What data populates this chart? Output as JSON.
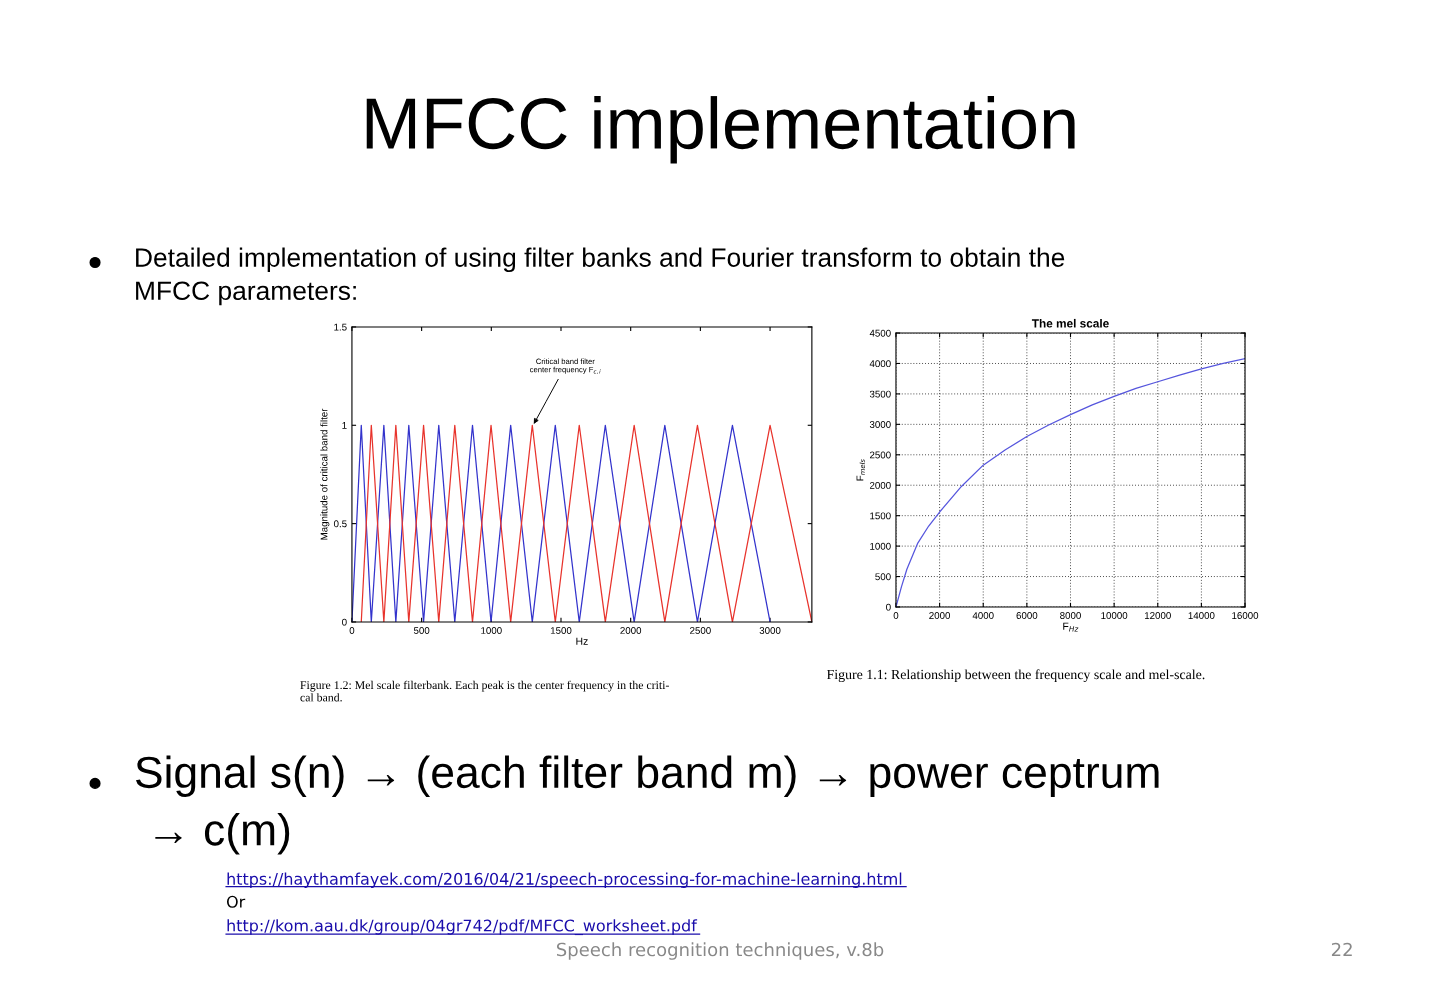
{
  "chart_data": [
    {
      "type": "line",
      "xlabel": "Hz",
      "ylabel": "Magnitude of critical band filter",
      "series": [
        {
          "color": "#3333cc",
          "x": [
            0,
            67,
            139,
            229,
            315,
            408,
            514,
            623,
            738,
            865,
            998,
            1139,
            1294,
            1459,
            1631,
            1818,
            2025,
            2245,
            2479,
            2730,
            3000
          ],
          "values": [
            0,
            1,
            0,
            1,
            0,
            1,
            0,
            1,
            0,
            1,
            0,
            1,
            0,
            1,
            0,
            1,
            0,
            1,
            0,
            1,
            0
          ]
        },
        {
          "color": "#e8332c",
          "x": [
            67,
            139,
            229,
            315,
            408,
            514,
            623,
            738,
            865,
            998,
            1139,
            1294,
            1459,
            1631,
            1818,
            2025,
            2245,
            2479,
            2730,
            3000,
            3300
          ],
          "values": [
            0,
            1,
            0,
            1,
            0,
            1,
            0,
            1,
            0,
            1,
            0,
            1,
            0,
            1,
            0,
            1,
            0,
            1,
            0,
            1,
            0
          ]
        }
      ],
      "xlim": [
        0,
        3300
      ],
      "xticks": [
        0,
        500,
        1000,
        1500,
        2000,
        2500,
        3000
      ],
      "ylim": [
        0,
        1.5
      ],
      "yticks": [
        0,
        0.5,
        1,
        1.5
      ],
      "grid": false,
      "marker": "none",
      "line_style": "solid",
      "annotations": [
        {
          "text": "Critical band filter\ncenter frequency F$_{c,i}$",
          "x": 1300,
          "y": 1
        },
        "Figure 1.2: Mel scale filterbank. Each peak is the center frequency in the criti-\ncal band.",
        "MFCC implementation",
        "Detailed implementation of using filter banks and Fourier transform to obtain the\nMFCC parameters:",
        "Signal s(n) → (each filter band m) → power ceptrum\n → c(m)",
        "https://haythamfayek.com/2016/04/21/speech-processing-for-machine-learning.html",
        "Or",
        "http://kom.aau.dk/group/04gr742/pdf/MFCC_worksheet.pdf",
        "Speech recognition techniques, v.8b",
        "22"
      ]
    },
    {
      "type": "line",
      "title": "The mel scale",
      "xlabel": "F$_{Hz}$",
      "ylabel": "F$_{mels}$",
      "series": [
        {
          "color": "#5555dd",
          "x": [
            0,
            250,
            500,
            1000,
            1500,
            2000,
            3000,
            4000,
            5000,
            6000,
            7000,
            8000,
            9000,
            10000,
            11000,
            12000,
            13000,
            14000,
            15000,
            16000
          ],
          "values": [
            0,
            330,
            620,
            1050,
            1330,
            1560,
            1980,
            2330,
            2580,
            2800,
            2990,
            3160,
            3320,
            3460,
            3590,
            3700,
            3810,
            3910,
            4000,
            4080
          ]
        }
      ],
      "xlim": [
        0,
        16000
      ],
      "xticks": [
        0,
        2000,
        4000,
        6000,
        8000,
        10000,
        12000,
        14000,
        16000
      ],
      "ylim": [
        0,
        4500
      ],
      "yticks": [
        0,
        500,
        1000,
        1500,
        2000,
        2500,
        3000,
        3500,
        4000,
        4500
      ],
      "grid": true,
      "marker": "none",
      "line_style": "solid",
      "annotations": [
        "Figure 1.1: Relationship between the frequency scale and mel-scale."
      ]
    }
  ]
}
